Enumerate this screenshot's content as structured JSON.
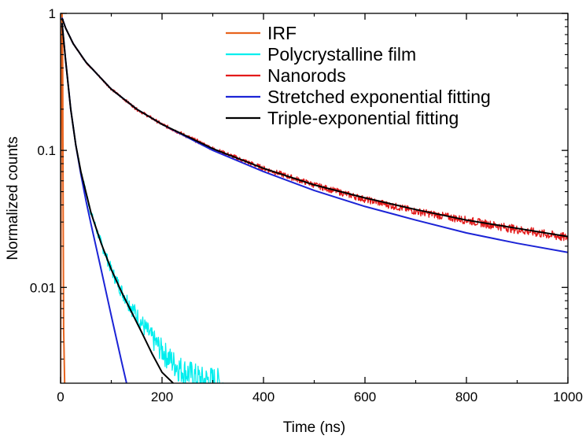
{
  "chart_data": {
    "type": "line",
    "title": "",
    "xlabel": "Time (ns)",
    "ylabel": "Normalized counts",
    "xlim": [
      0,
      1000
    ],
    "ylim": [
      0.002,
      1
    ],
    "yscale": "log",
    "x_ticks": [
      0,
      200,
      400,
      600,
      800,
      1000
    ],
    "x_tick_labels": [
      "0",
      "200",
      "400",
      "600",
      "800",
      "1000"
    ],
    "y_ticks": [
      1,
      0.1,
      0.01
    ],
    "y_tick_labels": [
      "1",
      "0.1",
      "0.01"
    ],
    "grid": false,
    "legend_position": "top-right",
    "series": [
      {
        "name": "IRF",
        "color": "#e8641e",
        "x": [
          0,
          1,
          2,
          3,
          4,
          5,
          6,
          8
        ],
        "y": [
          0.002,
          0.06,
          0.6,
          1.0,
          0.5,
          0.05,
          0.005,
          0.002
        ]
      },
      {
        "name": "Polycrystalline film",
        "color": "#00eeee",
        "noisy": true,
        "x": [
          3,
          5,
          10,
          20,
          30,
          40,
          60,
          80,
          100,
          120,
          140,
          160,
          180,
          200,
          220,
          240,
          260,
          280,
          300,
          320
        ],
        "y": [
          0.85,
          0.7,
          0.45,
          0.2,
          0.11,
          0.07,
          0.035,
          0.021,
          0.0135,
          0.0095,
          0.0072,
          0.0055,
          0.0043,
          0.0035,
          0.0029,
          0.0025,
          0.0023,
          0.0021,
          0.0021,
          0.002
        ]
      },
      {
        "name": "Nanorods",
        "color": "#e31a1a",
        "noisy": true,
        "x": [
          3,
          10,
          25,
          50,
          100,
          150,
          200,
          300,
          400,
          500,
          600,
          700,
          800,
          900,
          1000
        ],
        "y": [
          0.92,
          0.78,
          0.6,
          0.44,
          0.28,
          0.2,
          0.155,
          0.103,
          0.074,
          0.056,
          0.044,
          0.036,
          0.031,
          0.0265,
          0.023
        ]
      },
      {
        "name": "Stretched exponential fitting",
        "color": "#1c24d6",
        "x": [
          3,
          10,
          25,
          50,
          100,
          150,
          200,
          300,
          400,
          500,
          600,
          700,
          800,
          900,
          1000
        ],
        "y": [
          0.93,
          0.78,
          0.6,
          0.44,
          0.28,
          0.2,
          0.155,
          0.1,
          0.07,
          0.051,
          0.039,
          0.031,
          0.025,
          0.021,
          0.018
        ]
      },
      {
        "name": "",
        "color": "#1c24d6",
        "x": [
          3,
          10,
          20,
          30,
          40,
          50,
          60,
          80,
          100,
          120,
          130
        ],
        "y": [
          0.85,
          0.45,
          0.2,
          0.11,
          0.067,
          0.043,
          0.029,
          0.0135,
          0.0062,
          0.0029,
          0.002
        ]
      },
      {
        "name": "Triple-exponential fitting",
        "color": "#000000",
        "x": [
          3,
          10,
          25,
          50,
          100,
          150,
          200,
          300,
          400,
          500,
          600,
          700,
          800,
          900,
          1000
        ],
        "y": [
          0.92,
          0.78,
          0.6,
          0.44,
          0.28,
          0.2,
          0.155,
          0.103,
          0.074,
          0.056,
          0.045,
          0.037,
          0.031,
          0.027,
          0.0235
        ]
      },
      {
        "name": "",
        "color": "#000000",
        "x": [
          3,
          10,
          20,
          30,
          40,
          60,
          80,
          100,
          120,
          140,
          160,
          180,
          200,
          222
        ],
        "y": [
          0.85,
          0.45,
          0.2,
          0.11,
          0.07,
          0.035,
          0.021,
          0.0135,
          0.0093,
          0.0066,
          0.0047,
          0.0033,
          0.0024,
          0.002
        ]
      }
    ]
  }
}
